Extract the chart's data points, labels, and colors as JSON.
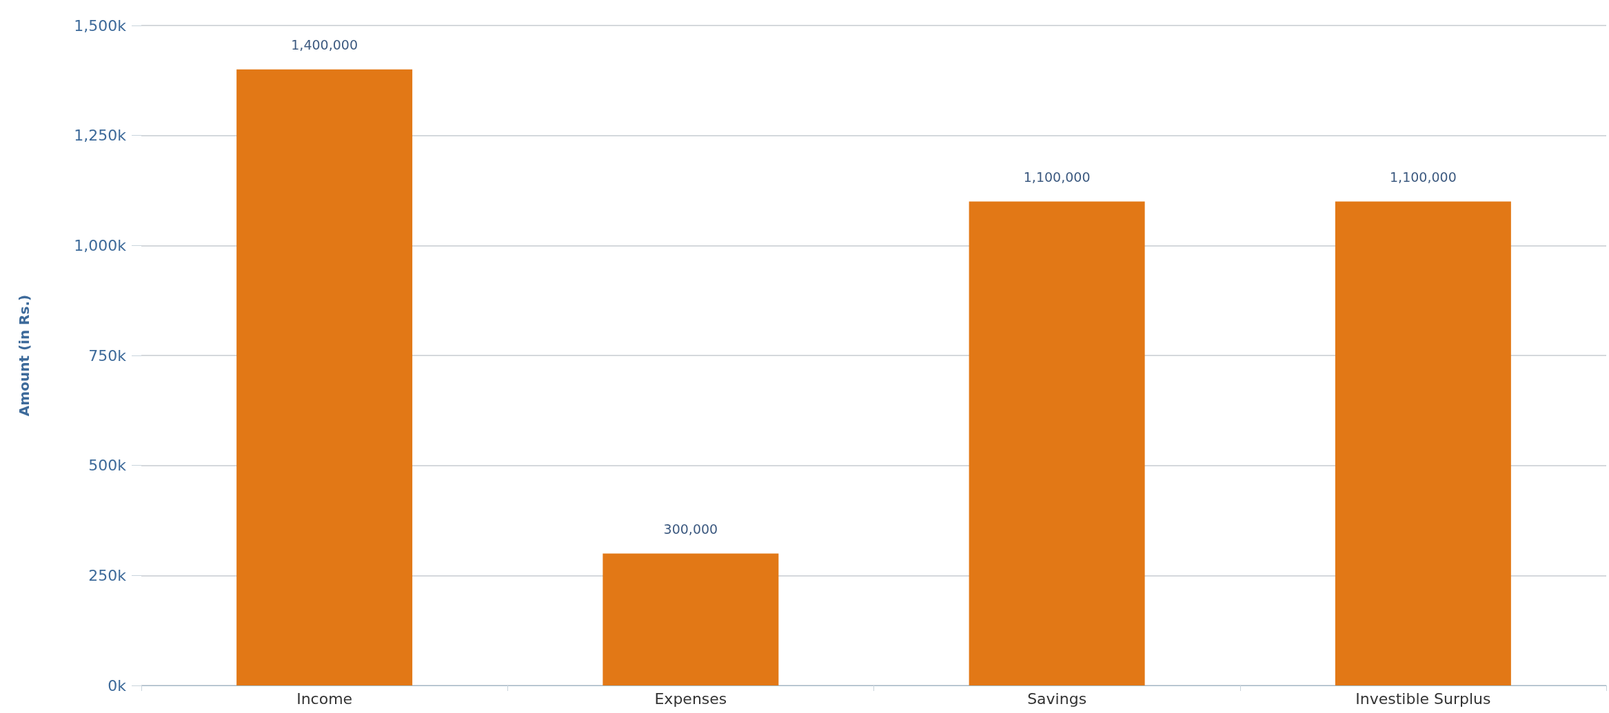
{
  "chart_data": {
    "type": "bar",
    "ylabel": "Amount (in Rs.)",
    "categories": [
      "Income",
      "Expenses",
      "Savings",
      "Investible Surplus"
    ],
    "values": [
      1400000,
      300000,
      1100000,
      1100000
    ],
    "value_labels": [
      "1,400,000",
      "300,000",
      "1,100,000",
      "1,100,000"
    ],
    "color": "#e27816",
    "ylim": [
      0,
      1500000
    ],
    "yticks": [
      {
        "value": 0,
        "label": "0k"
      },
      {
        "value": 250000,
        "label": "250k"
      },
      {
        "value": 500000,
        "label": "500k"
      },
      {
        "value": 750000,
        "label": "750k"
      },
      {
        "value": 1000000,
        "label": "1,000k"
      },
      {
        "value": 1250000,
        "label": "1,250k"
      },
      {
        "value": 1500000,
        "label": "1,500k"
      }
    ],
    "grid": "y"
  }
}
